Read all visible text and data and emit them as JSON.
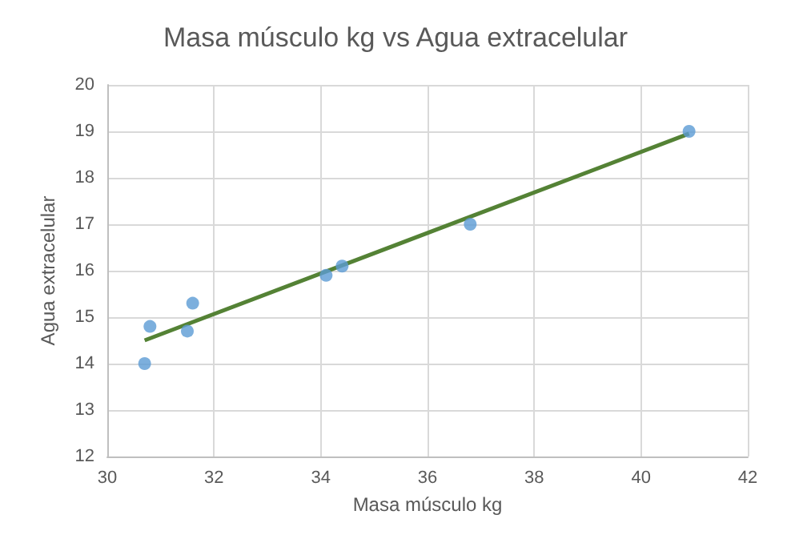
{
  "chart_data": {
    "type": "scatter",
    "title": "Masa músculo kg vs Agua extracelular",
    "xlabel": "Masa músculo kg",
    "ylabel": "Agua extracelular",
    "series": [
      {
        "color": "#5b9bd5",
        "marker": "circle",
        "x": [
          30.7,
          30.8,
          31.5,
          31.6,
          34.1,
          34.4,
          36.8,
          40.9
        ],
        "values": [
          14.0,
          14.8,
          14.7,
          15.3,
          15.9,
          16.1,
          17.0,
          19.0
        ]
      },
      {
        "type": "line",
        "marker": "none",
        "color": "#548235",
        "x": [
          30.7,
          40.9
        ],
        "values": [
          14.5,
          18.95
        ]
      }
    ],
    "xlim": [
      30,
      42
    ],
    "xticks": [
      30,
      32,
      34,
      36,
      38,
      40,
      42
    ],
    "ylim": [
      12,
      20
    ],
    "yticks": [
      12,
      13,
      14,
      15,
      16,
      17,
      18,
      19,
      20
    ],
    "grid": true
  }
}
